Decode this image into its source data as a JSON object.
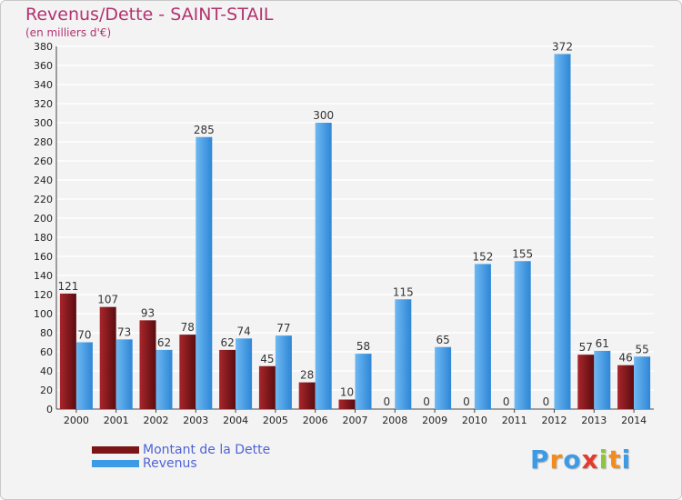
{
  "header": {
    "title": "Revenus/Dette - SAINT-STAIL",
    "subtitle": "(en milliers d'€)"
  },
  "chart_data": {
    "type": "bar",
    "categories": [
      "2000",
      "2001",
      "2002",
      "2003",
      "2004",
      "2005",
      "2006",
      "2007",
      "2008",
      "2009",
      "2010",
      "2011",
      "2012",
      "2013",
      "2014"
    ],
    "series": [
      {
        "name": "Montant de la Dette",
        "color": "#7a1518",
        "values": [
          121,
          107,
          93,
          78,
          62,
          45,
          28,
          10,
          0,
          0,
          0,
          0,
          0,
          57,
          46
        ]
      },
      {
        "name": "Revenus",
        "color": "#3d9be6",
        "values": [
          70,
          73,
          62,
          285,
          74,
          77,
          300,
          58,
          115,
          65,
          152,
          155,
          372,
          61,
          55
        ]
      }
    ],
    "yticks": [
      0,
      20,
      40,
      60,
      80,
      100,
      120,
      140,
      160,
      180,
      200,
      220,
      240,
      260,
      280,
      300,
      320,
      340,
      360,
      380
    ],
    "ylim": [
      0,
      380
    ],
    "grid": true,
    "legend_position": "bottom-left",
    "title": "Revenus/Dette - SAINT-STAIL",
    "xlabel": "",
    "ylabel": "(en milliers d'€)"
  },
  "legend": {
    "debt_label": "Montant de la Dette",
    "revenue_label": "Revenus",
    "debt_color": "#7a1518",
    "revenue_color": "#3d9be6"
  },
  "logo": {
    "letters": [
      "P",
      "r",
      "o",
      "x",
      "i",
      "t",
      "i"
    ],
    "colors": [
      "#3d9be6",
      "#f28c1e",
      "#3d9be6",
      "#e23b2e",
      "#8cc63f",
      "#f28c1e",
      "#3d9be6"
    ]
  }
}
